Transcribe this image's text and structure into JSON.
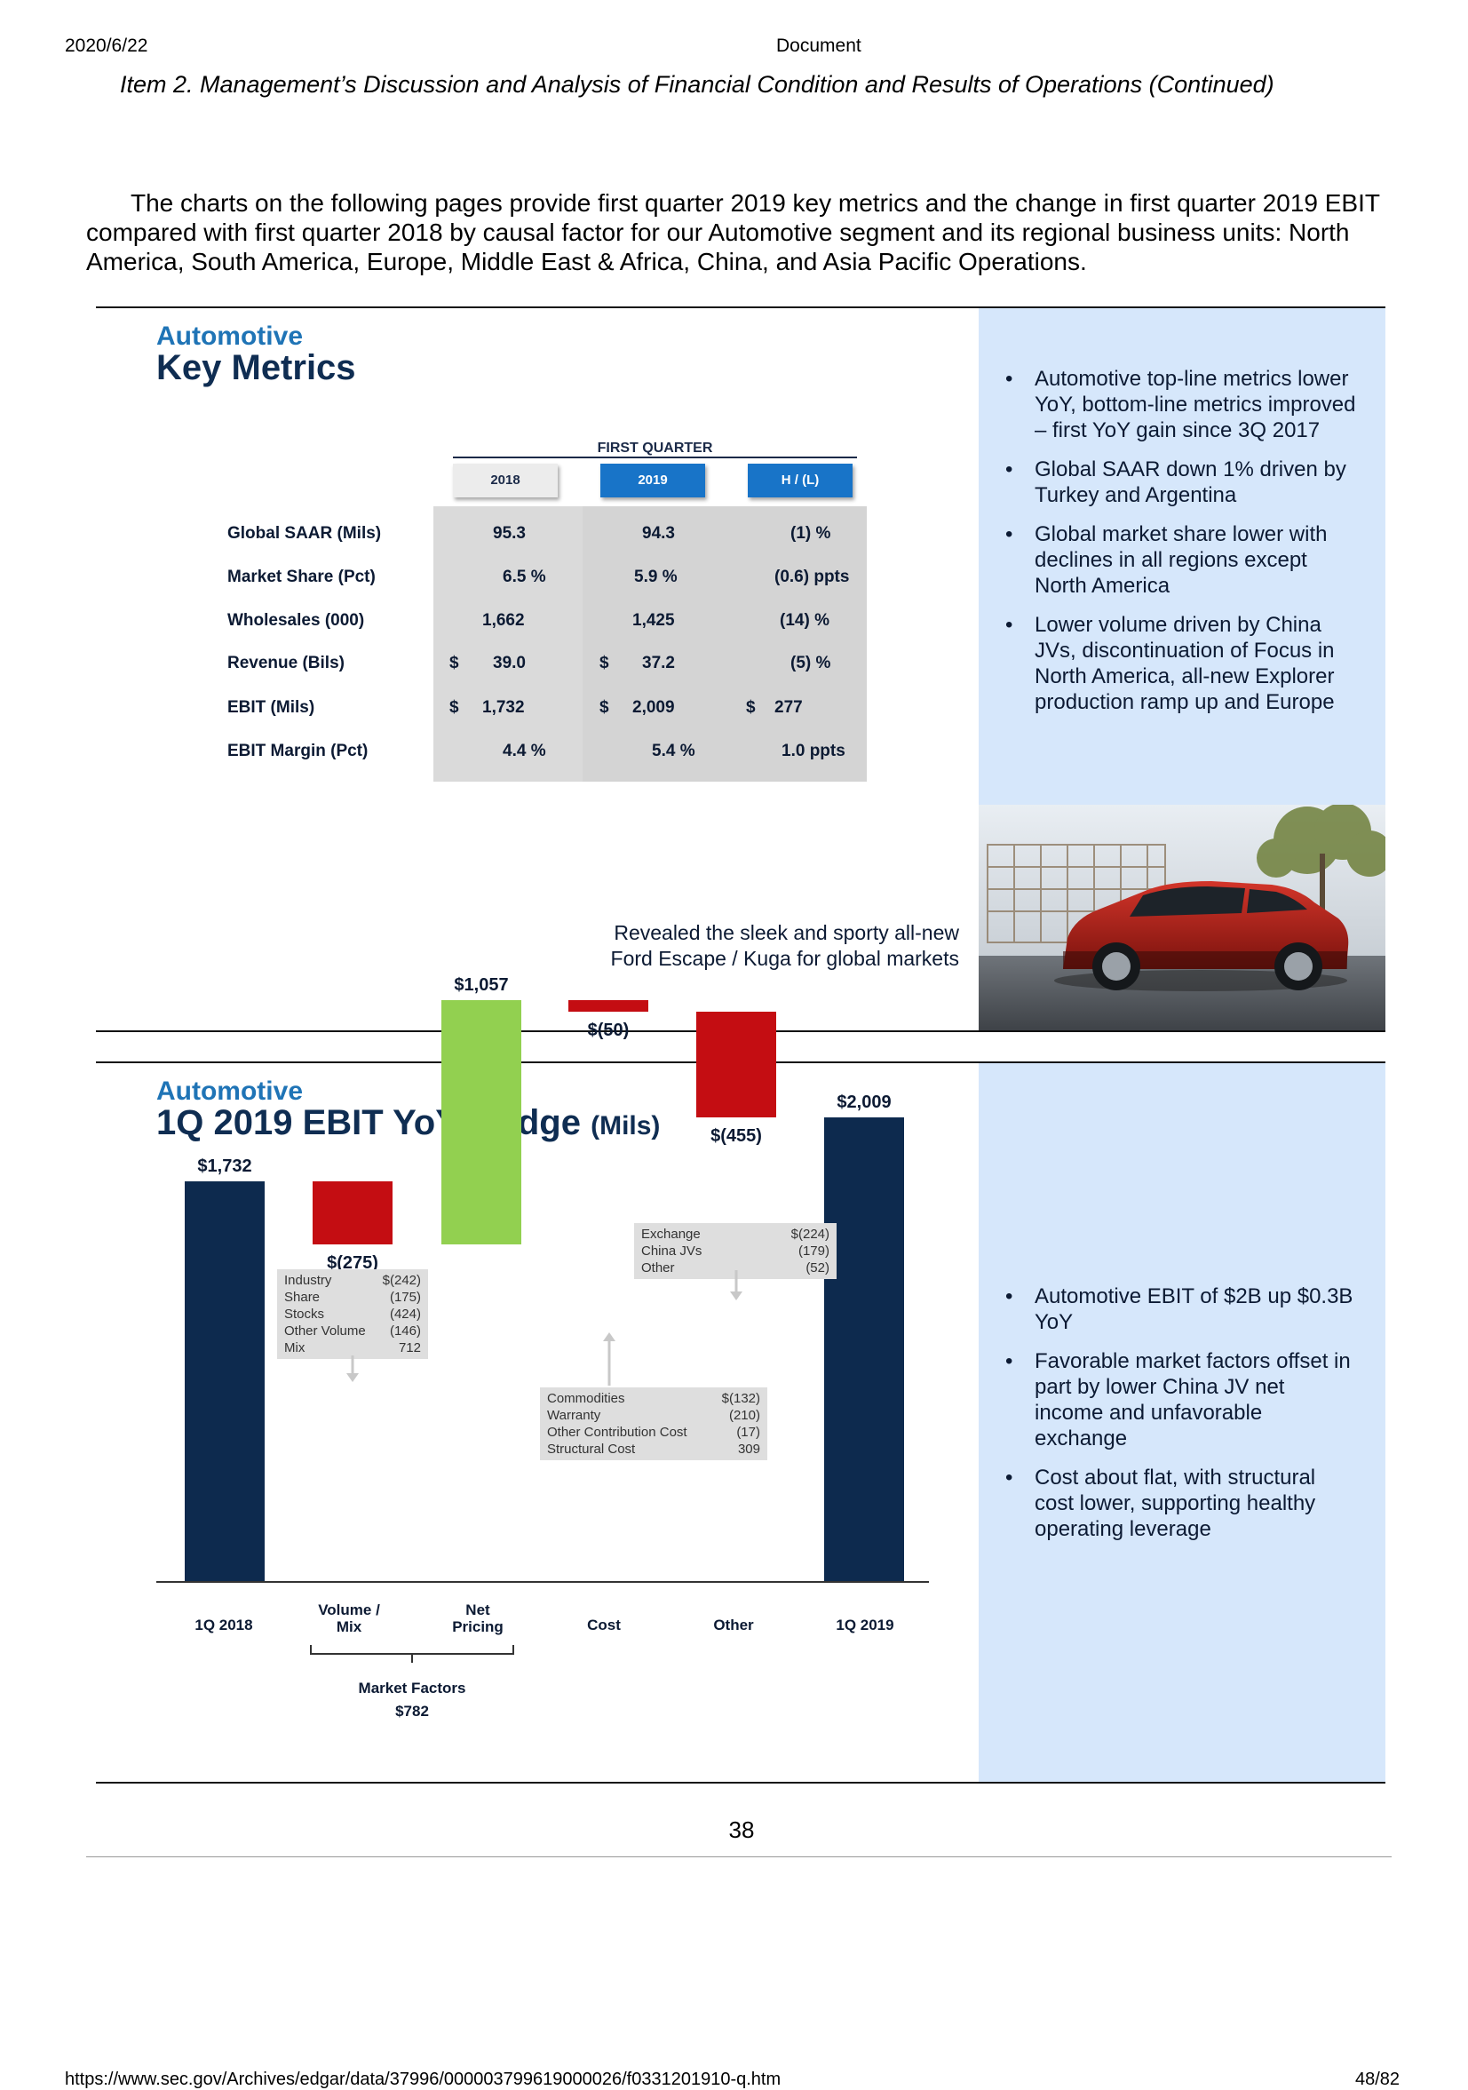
{
  "header": {
    "date": "2020/6/22",
    "title": "Document"
  },
  "item_heading": "Item 2. Management’s Discussion and Analysis of Financial Condition and Results of Operations (Continued)",
  "intro_text": "The charts on the following pages provide first quarter 2019 key metrics and the change in first quarter 2019 EBIT compared with first quarter 2018 by causal factor for our Automotive segment and its regional business units: North America, South America, Europe, Middle East & Africa, China, and Asia Pacific Operations.",
  "key_metrics": {
    "section": "Automotive",
    "title": "Key Metrics",
    "period_header": "FIRST QUARTER",
    "columns": [
      "2018",
      "2019",
      "H / (L)"
    ],
    "rows": [
      {
        "label": "Global SAAR (Mils)",
        "v2018": "95.3",
        "v2019": "94.3",
        "hl": "(1) %"
      },
      {
        "label": "Market Share (Pct)",
        "v2018": "6.5  %",
        "v2019": "5.9  %",
        "hl": "(0.6) ppts"
      },
      {
        "label": "Wholesales (000)",
        "v2018": "1,662",
        "v2019": "1,425",
        "hl": "(14) %"
      },
      {
        "label": "Revenue (Bils)",
        "cur2018": "$",
        "v2018": "39.0",
        "cur2019": "$",
        "v2019": "37.2",
        "hl": "(5) %"
      },
      {
        "label": "EBIT (Mils)",
        "cur2018": "$",
        "v2018": "1,732",
        "cur2019": "$",
        "v2019": "2,009",
        "curhl": "$",
        "hl": "277"
      },
      {
        "label": "EBIT Margin (Pct)",
        "v2018": "4.4  %",
        "v2019": "5.4  %",
        "hl": "1.0   ppts"
      }
    ],
    "bullets": [
      "Automotive top-line metrics lower YoY, bottom-line metrics improved – first YoY gain since 3Q 2017",
      "Global SAAR down 1% driven by Turkey and Argentina",
      "Global market share lower with declines in all regions except North America",
      "Lower volume driven by China JVs, discontinuation of Focus in North America, all-new Explorer production ramp up and Europe"
    ],
    "caption_line1": "Revealed the sleek and sporty all-new",
    "caption_line2": "Ford Escape / Kuga for global markets"
  },
  "bridge": {
    "section": "Automotive",
    "title": "1Q 2019 EBIT YoY Bridge",
    "title_unit": "(Mils)",
    "colors": {
      "total": "#0d2a4e",
      "negative": "#c40d12",
      "positive": "#92d050"
    },
    "volume_mix_detail": [
      {
        "label": "Industry",
        "value": "$(242)"
      },
      {
        "label": "Share",
        "value": "(175)"
      },
      {
        "label": "Stocks",
        "value": "(424)"
      },
      {
        "label": "Other Volume",
        "value": "(146)"
      },
      {
        "label": "Mix",
        "value": "712"
      }
    ],
    "cost_detail": [
      {
        "label": "Commodities",
        "value": "$(132)"
      },
      {
        "label": "Warranty",
        "value": "(210)"
      },
      {
        "label": "Other Contribution Cost",
        "value": "(17)"
      },
      {
        "label": "Structural Cost",
        "value": "309"
      }
    ],
    "other_detail": [
      {
        "label": "Exchange",
        "value": "$(224)"
      },
      {
        "label": "China JVs",
        "value": "(179)"
      },
      {
        "label": "Other",
        "value": "(52)"
      }
    ],
    "market_factors_label": "Market Factors",
    "market_factors_value": "$782",
    "bullets": [
      "Automotive EBIT of $2B up $0.3B YoY",
      "Favorable market factors offset in part by lower China JV net income and unfavorable exchange",
      "Cost about flat, with structural cost lower, supporting healthy operating leverage"
    ]
  },
  "chart_data": {
    "type": "bar",
    "title": "1Q 2019 EBIT YoY Bridge (Mils)",
    "categories": [
      "1Q 2018",
      "Volume / Mix",
      "Net Pricing",
      "Cost",
      "Other",
      "1Q 2019"
    ],
    "values": [
      1732,
      -275,
      1057,
      -50,
      -455,
      2009
    ],
    "value_labels": [
      "$1,732",
      "$(275)",
      "$1,057",
      "$(50)",
      "$(455)",
      "$2,009"
    ],
    "ylim": [
      0,
      2600
    ]
  },
  "page_number": "38",
  "footer": {
    "url": "https://www.sec.gov/Archives/edgar/data/37996/000003799619000026/f0331201910-q.htm",
    "page": "48/82"
  }
}
